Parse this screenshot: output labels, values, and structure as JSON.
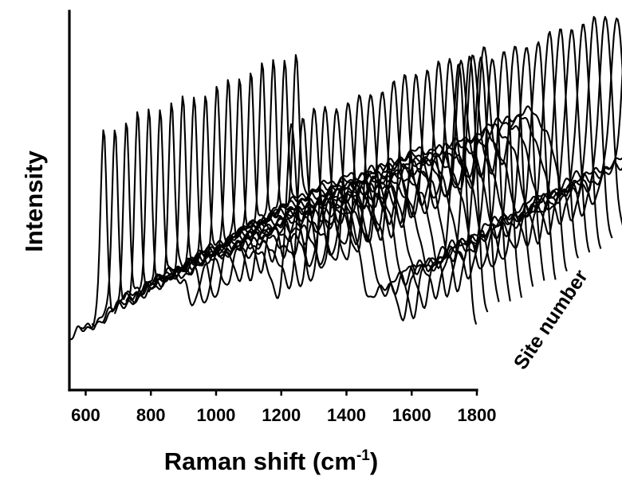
{
  "chart_data": {
    "type": "line",
    "title": "",
    "xlabel": "Raman shift (cm",
    "xlabel_superscript": "-1",
    "xlabel_suffix": ")",
    "ylabel": "Intensity",
    "zlabel": "Site number",
    "x_ticks": [
      "600",
      "800",
      "1000",
      "1200",
      "1400",
      "1600",
      "1800"
    ],
    "xlim": [
      550,
      1800
    ],
    "y_ticks_shown": false,
    "grid": false,
    "legend": "none",
    "series_count": 18,
    "peaks": [
      {
        "x": 655,
        "relative_intensity": 0.78
      },
      {
        "x": 1230,
        "relative_intensity": 0.63
      },
      {
        "x": 1745,
        "relative_intensity": 1.0
      }
    ],
    "valleys": [
      930,
      1195,
      1290,
      1470,
      1570
    ],
    "line_color": "#000000"
  }
}
